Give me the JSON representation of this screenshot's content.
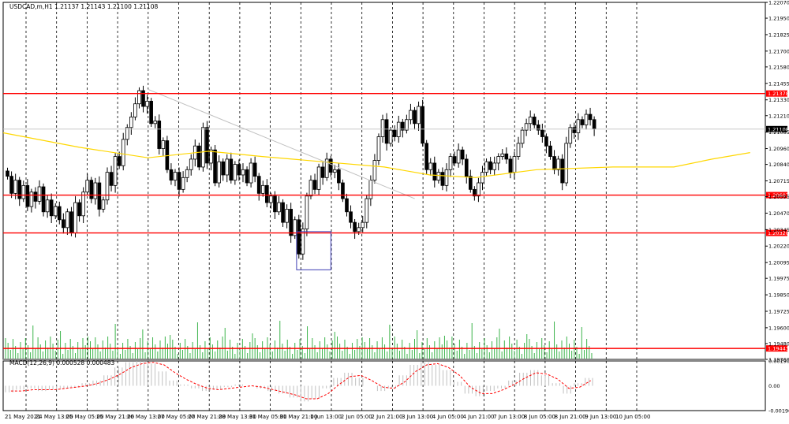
{
  "window": {
    "main_title": "USDCAD,m,H1  1.21137 1.21143 1.21100 1.21108",
    "sub_title": "MACD(12,26,9) 0.000528 0.000483"
  },
  "colors": {
    "background": "#ffffff",
    "candle": "#000000",
    "level_line": "#ff0000",
    "ma_line": "#ffd700",
    "trendline": "#c0c0c0",
    "volume_bar": "#3cb44b",
    "macd_hist": "#c0c0c0",
    "signal_line": "#ff0000",
    "highlight_box": "#3c3cb4",
    "price_tag_bg": "#ff0000",
    "current_tag_bg": "#000000"
  },
  "chart_data": {
    "type": "candlestick",
    "symbol": "USDCAD,m",
    "timeframe": "H1",
    "ohlc_header": {
      "open": 1.21137,
      "high": 1.21143,
      "low": 1.211,
      "close": 1.21108
    },
    "x_ticks": [
      "21 May 2021",
      "24 May 13:00",
      "25 May 05:00",
      "25 May 21:00",
      "26 May 13:00",
      "27 May 05:00",
      "27 May 21:00",
      "28 May 13:00",
      "31 May 05:00",
      "31 May 21:00",
      "1 Jun 13:00",
      "2 Jun 05:00",
      "2 Jun 21:00",
      "3 Jun 13:00",
      "4 Jun 05:00",
      "4 Jun 21:00",
      "7 Jun 13:00",
      "8 Jun 05:00",
      "8 Jun 21:00",
      "9 Jun 13:00",
      "10 Jun 05:00"
    ],
    "y_ticks": [
      "1.22070",
      "1.21950",
      "1.21825",
      "1.21700",
      "1.21580",
      "1.21455",
      "1.21330",
      "1.21210",
      "1.21085",
      "1.20960",
      "1.20840",
      "1.20715",
      "1.20595",
      "1.20470",
      "1.20345",
      "1.20220",
      "1.20095",
      "1.19975",
      "1.19850",
      "1.19725",
      "1.19600",
      "1.19480",
      "1.19360"
    ],
    "ylim": [
      1.1936,
      1.2207
    ],
    "close_path": [
      1.2075,
      1.2062,
      1.2072,
      1.2058,
      1.2068,
      1.2052,
      1.2063,
      1.2056,
      1.2067,
      1.2048,
      1.2057,
      1.2045,
      1.2052,
      1.2042,
      1.2036,
      1.2048,
      1.2032,
      1.2055,
      1.2045,
      1.2063,
      1.2072,
      1.2058,
      1.207,
      1.205,
      1.2057,
      1.2078,
      1.2068,
      1.209,
      1.2083,
      1.2103,
      1.2112,
      1.212,
      1.213,
      1.214,
      1.2128,
      1.2132,
      1.2115,
      1.2117,
      1.2096,
      1.2102,
      1.208,
      1.2072,
      1.2078,
      1.2065,
      1.2074,
      1.208,
      1.2088,
      1.2098,
      1.2082,
      1.2112,
      1.2085,
      1.2095,
      1.207,
      1.2086,
      1.2076,
      1.2088,
      1.2072,
      1.2084,
      1.2076,
      1.208,
      1.207,
      1.2085,
      1.2075,
      1.2062,
      1.2068,
      1.2055,
      1.206,
      1.2048,
      1.2055,
      1.204,
      1.205,
      1.203,
      1.2042,
      1.2016,
      1.2035,
      1.206,
      1.2072,
      1.2065,
      1.2082,
      1.2074,
      1.2088,
      1.2078,
      1.208,
      1.207,
      1.2058,
      1.2048,
      1.204,
      1.2033,
      1.2036,
      1.204,
      1.2058,
      1.2072,
      1.2087,
      1.2105,
      1.2118,
      1.21,
      1.211,
      1.2105,
      1.2116,
      1.211,
      1.2118,
      1.2125,
      1.2115,
      1.2128,
      1.21,
      1.208,
      1.2085,
      1.2072,
      1.2078,
      1.2068,
      1.208,
      1.209,
      1.2085,
      1.2095,
      1.2088,
      1.2075,
      1.2065,
      1.206,
      1.207,
      1.2078,
      1.2086,
      1.208,
      1.2085,
      1.209,
      1.2092,
      1.2088,
      1.2078,
      1.209,
      1.21,
      1.211,
      1.2115,
      1.212,
      1.2114,
      1.211,
      1.2105,
      1.2098,
      1.209,
      1.208,
      1.2088,
      1.207,
      1.21,
      1.2112,
      1.2108,
      1.2118,
      1.2114,
      1.2122,
      1.2118,
      1.2111
    ],
    "moving_average": {
      "color": "#ffd700",
      "points": [
        [
          0,
          1.2108
        ],
        [
          0.1,
          1.2097
        ],
        [
          0.19,
          1.2089
        ],
        [
          0.27,
          1.2094
        ],
        [
          0.34,
          1.209
        ],
        [
          0.42,
          1.2086
        ],
        [
          0.5,
          1.2082
        ],
        [
          0.56,
          1.2076
        ],
        [
          0.62,
          1.2074
        ],
        [
          0.7,
          1.208
        ],
        [
          0.8,
          1.2082
        ],
        [
          0.88,
          1.2082
        ],
        [
          0.93,
          1.2088
        ],
        [
          0.98,
          1.2093
        ]
      ]
    },
    "trendline": {
      "from": [
        0.19,
        1.2141
      ],
      "to": [
        0.54,
        1.2058
      ]
    },
    "horizontal_levels": [
      {
        "price": 1.21378,
        "label": "1.21378",
        "color": "#ff0000"
      },
      {
        "price": 1.20607,
        "label": "1.20607",
        "color": "#ff0000"
      },
      {
        "price": 1.2032,
        "label": "1.20320",
        "color": "#ff0000"
      },
      {
        "price": 1.19443,
        "label": "1.19443",
        "color": "#ff0000"
      }
    ],
    "current_price": {
      "price": 1.21108,
      "label": "1.21108"
    },
    "highlight_box": {
      "x0": 0.385,
      "x1": 0.43,
      "top": 1.2033,
      "bottom": 1.2004
    },
    "volume": {
      "color": "#3cb44b"
    },
    "macd": {
      "title": "MACD(12,26,9) 0.000528 0.000483",
      "y_ticks": [
        "0.001904",
        "0.00",
        "-0.001904"
      ],
      "ylim": [
        -0.001904,
        0.001904
      ],
      "histogram": [
        -0.0005,
        -0.0003,
        -0.0002,
        -0.0004,
        -0.0003,
        -0.0002,
        -0.0001,
        0.0002,
        0.0004,
        0.0008,
        0.0014,
        0.0018,
        0.0019,
        0.0017,
        0.0011,
        0.0004,
        0.0001,
        -0.0002,
        -0.0004,
        -0.0003,
        -0.0001,
        0.0001,
        0.0,
        -0.0002,
        -0.0004,
        -0.0006,
        -0.0009,
        -0.0012,
        -0.001,
        -0.0002,
        0.0006,
        0.001,
        0.0006,
        0.0,
        -0.0004,
        -0.0002,
        0.0008,
        0.0016,
        0.0018,
        0.0016,
        0.0012,
        0.0003,
        -0.0006,
        -0.0008,
        -0.0004,
        -0.0002,
        0.0004,
        0.001,
        0.0012,
        0.0008,
        0.0002,
        -0.0006,
        0.0002,
        0.0006
      ],
      "signal": [
        -0.0004,
        -0.0004,
        -0.0003,
        -0.0003,
        -0.0003,
        -0.0002,
        -0.0001,
        0.0,
        0.0002,
        0.0005,
        0.0009,
        0.0014,
        0.0017,
        0.0018,
        0.0016,
        0.001,
        0.0005,
        0.0001,
        -0.0002,
        -0.0003,
        -0.0002,
        -0.0001,
        0.0,
        -0.0001,
        -0.0003,
        -0.0005,
        -0.0007,
        -0.001,
        -0.001,
        -0.0006,
        0.0001,
        0.0007,
        0.0008,
        0.0004,
        -0.0001,
        -0.0002,
        0.0003,
        0.0011,
        0.0016,
        0.0017,
        0.0014,
        0.0008,
        -0.0001,
        -0.0006,
        -0.0006,
        -0.0003,
        0.0001,
        0.0006,
        0.001,
        0.0009,
        0.0005,
        -0.0002,
        -0.0001,
        0.0004
      ]
    }
  }
}
